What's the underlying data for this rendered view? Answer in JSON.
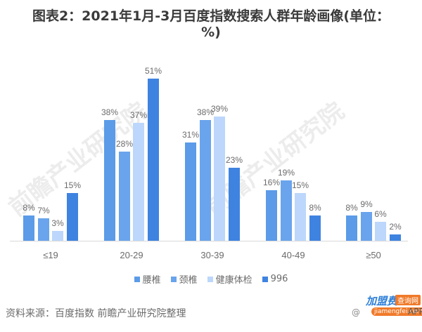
{
  "title": "图表2：2021年1月-3月百度指数搜索人群年龄画像(单位：%)",
  "watermark": "前瞻产业研究院",
  "source": "资料来源：百度指数 前瞻产业研究院整理",
  "badge": {
    "brand": "加盟费",
    "tag": "查询网",
    "url": "jiamengfei.com",
    "at": "@",
    "app": "APP"
  },
  "colors": {
    "腰椎": "#5b9be8",
    "颈椎": "#6aa4ec",
    "健康体检": "#bcd7fb",
    "996": "#3f83e0"
  },
  "chart_data": {
    "type": "bar",
    "title": "图表2：2021年1月-3月百度指数搜索人群年龄画像(单位：%)",
    "xlabel": "",
    "ylabel": "",
    "ylim": [
      0,
      55
    ],
    "grid": false,
    "legend_position": "bottom",
    "categories": [
      "≤19",
      "20-29",
      "30-39",
      "40-49",
      "≥50"
    ],
    "series": [
      {
        "name": "腰椎",
        "values": [
          8,
          38,
          31,
          16,
          8
        ],
        "color": "#5b9be8"
      },
      {
        "name": "颈椎",
        "values": [
          7,
          28,
          38,
          19,
          9
        ],
        "color": "#6aa4ec"
      },
      {
        "name": "健康体检",
        "values": [
          3,
          37,
          39,
          15,
          6
        ],
        "color": "#bcd7fb"
      },
      {
        "name": "996",
        "values": [
          15,
          51,
          23,
          8,
          2
        ],
        "color": "#3f83e0"
      }
    ]
  }
}
